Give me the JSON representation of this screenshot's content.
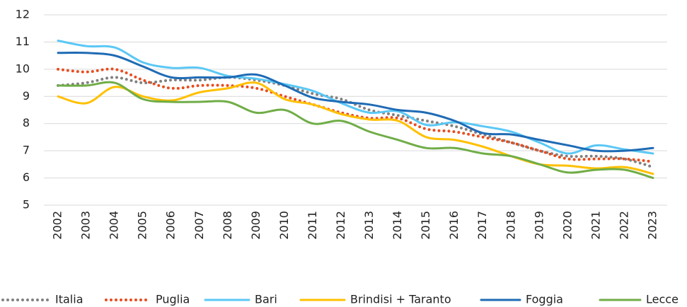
{
  "chart_data": {
    "type": "line",
    "x": [
      "2002",
      "2003",
      "2004",
      "2005",
      "2006",
      "2007",
      "2008",
      "2009",
      "2010",
      "2011",
      "2012",
      "2013",
      "2014",
      "2015",
      "2016",
      "2017",
      "2018",
      "2019",
      "2020",
      "2021",
      "2022",
      "2023"
    ],
    "ylim": [
      5,
      12
    ],
    "yticks": [
      5,
      6,
      7,
      8,
      9,
      10,
      11,
      12
    ],
    "grid": true,
    "legend": "bottom",
    "series": [
      {
        "name": "Italia",
        "color": "#808080",
        "style": "dotted",
        "values": [
          9.4,
          9.5,
          9.7,
          9.5,
          9.6,
          9.6,
          9.7,
          9.6,
          9.4,
          9.1,
          8.9,
          8.5,
          8.3,
          8.1,
          7.9,
          7.6,
          7.3,
          7.0,
          6.8,
          6.8,
          6.7,
          6.4
        ]
      },
      {
        "name": "Puglia",
        "color": "#e84c1f",
        "style": "dotted",
        "values": [
          10.0,
          9.9,
          10.0,
          9.6,
          9.3,
          9.4,
          9.4,
          9.3,
          9.0,
          8.7,
          8.4,
          8.2,
          8.2,
          7.8,
          7.7,
          7.5,
          7.3,
          7.0,
          6.7,
          6.7,
          6.7,
          6.6
        ]
      },
      {
        "name": "Bari",
        "color": "#5bc8f5",
        "style": "solid",
        "values": [
          11.05,
          10.85,
          10.8,
          10.25,
          10.05,
          10.05,
          9.75,
          9.65,
          9.45,
          9.2,
          8.75,
          8.4,
          8.45,
          7.95,
          8.05,
          7.9,
          7.7,
          7.3,
          6.9,
          7.2,
          7.05,
          6.9
        ]
      },
      {
        "name": "Brindisi + Taranto",
        "color": "#ffc000",
        "style": "solid",
        "values": [
          9.0,
          8.75,
          9.35,
          9.0,
          8.85,
          9.15,
          9.3,
          9.5,
          8.9,
          8.7,
          8.35,
          8.15,
          8.1,
          7.5,
          7.4,
          7.15,
          6.8,
          6.5,
          6.45,
          6.35,
          6.4,
          6.15
        ]
      },
      {
        "name": "Foggia",
        "color": "#1f6bb5",
        "style": "solid",
        "values": [
          10.6,
          10.6,
          10.5,
          10.1,
          9.7,
          9.7,
          9.7,
          9.8,
          9.4,
          8.95,
          8.8,
          8.7,
          8.5,
          8.4,
          8.1,
          7.65,
          7.6,
          7.4,
          7.2,
          7.0,
          7.0,
          7.1
        ]
      },
      {
        "name": "Lecce",
        "color": "#70ad47",
        "style": "solid",
        "values": [
          9.4,
          9.4,
          9.5,
          8.9,
          8.8,
          8.8,
          8.8,
          8.4,
          8.5,
          8.0,
          8.1,
          7.7,
          7.4,
          7.1,
          7.1,
          6.9,
          6.8,
          6.5,
          6.2,
          6.3,
          6.3,
          6.0
        ]
      }
    ]
  }
}
